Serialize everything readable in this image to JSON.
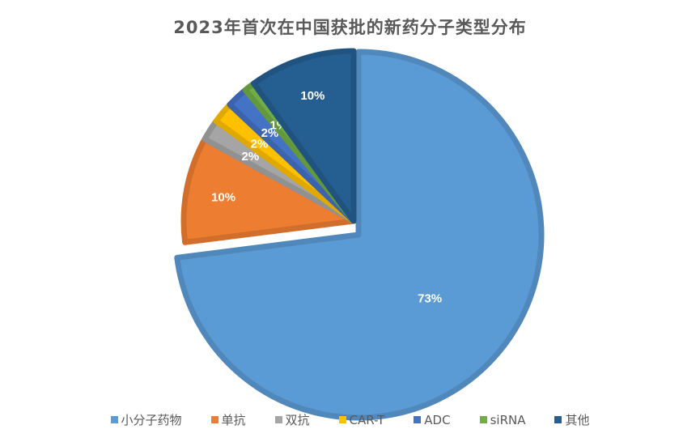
{
  "chart_data": {
    "type": "pie",
    "title": "2023年首次在中国获批的新药分子类型分布",
    "start_angle": "top, clockwise",
    "legend_position": "bottom",
    "slices": [
      {
        "label": "小分子药物",
        "value": 73,
        "display": "73%",
        "color": "#5B9BD5"
      },
      {
        "label": "单抗",
        "value": 10,
        "display": "10%",
        "color": "#ED7D31"
      },
      {
        "label": "双抗",
        "value": 2,
        "display": "2%",
        "color": "#A5A5A5"
      },
      {
        "label": "CAR-T",
        "value": 2,
        "display": "2%",
        "color": "#FFC000"
      },
      {
        "label": "ADC",
        "value": 2,
        "display": "2%",
        "color": "#4472C4"
      },
      {
        "label": "siRNA",
        "value": 1,
        "display": "1%",
        "color": "#70AD47"
      },
      {
        "label": "其他",
        "value": 10,
        "display": "10%",
        "color": "#255E91"
      }
    ]
  }
}
